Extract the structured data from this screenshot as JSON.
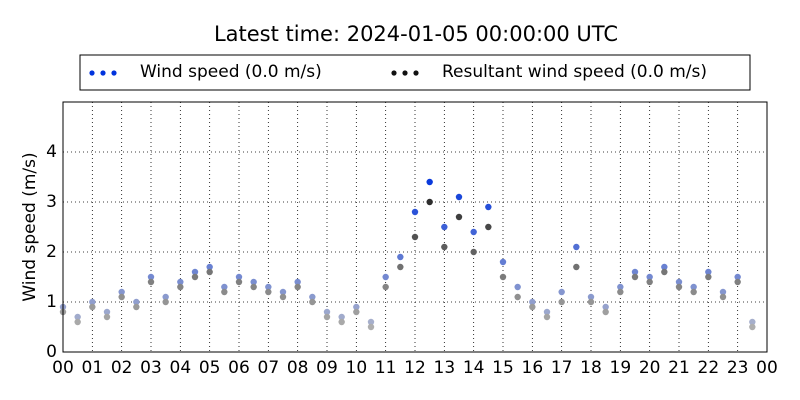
{
  "chart_data": {
    "type": "scatter",
    "title": "Latest time: 2024-01-05 00:00:00 UTC",
    "y_label": "Wind speed (m/s)",
    "x": [
      0,
      0.5,
      1,
      1.5,
      2,
      2.5,
      3,
      3.5,
      4,
      4.5,
      5,
      5.5,
      6,
      6.5,
      7,
      7.5,
      8,
      8.5,
      9,
      9.5,
      10,
      10.5,
      11,
      11.5,
      12,
      12.5,
      13,
      13.5,
      14,
      14.5,
      15,
      15.5,
      16,
      16.5,
      17,
      17.5,
      18,
      18.5,
      19,
      19.5,
      20,
      20.5,
      21,
      21.5,
      22,
      22.5,
      23,
      23.5
    ],
    "series": [
      {
        "name": "Wind speed (0.0 m/s)",
        "color": "#0033dd",
        "values": [
          0.9,
          0.7,
          1.0,
          0.8,
          1.2,
          1.0,
          1.5,
          1.1,
          1.4,
          1.6,
          1.7,
          1.3,
          1.5,
          1.4,
          1.3,
          1.2,
          1.4,
          1.1,
          0.8,
          0.7,
          0.9,
          0.6,
          1.5,
          1.9,
          2.8,
          3.4,
          2.5,
          3.1,
          2.4,
          2.9,
          1.8,
          1.3,
          1.0,
          0.8,
          1.2,
          2.1,
          1.1,
          0.9,
          1.3,
          1.6,
          1.5,
          1.7,
          1.4,
          1.3,
          1.6,
          1.2,
          1.5,
          0.6
        ]
      },
      {
        "name": "Resultant wind speed (0.0 m/s)",
        "color": "#111111",
        "values": [
          0.8,
          0.6,
          0.9,
          0.7,
          1.1,
          0.9,
          1.4,
          1.0,
          1.3,
          1.5,
          1.6,
          1.2,
          1.4,
          1.3,
          1.2,
          1.1,
          1.3,
          1.0,
          0.7,
          0.6,
          0.8,
          0.5,
          1.3,
          1.7,
          2.3,
          3.0,
          2.1,
          2.7,
          2.0,
          2.5,
          1.5,
          1.1,
          0.9,
          0.7,
          1.0,
          1.7,
          1.0,
          0.8,
          1.2,
          1.5,
          1.4,
          1.6,
          1.3,
          1.2,
          1.5,
          1.1,
          1.4,
          0.5
        ]
      }
    ],
    "xlim": [
      0,
      24
    ],
    "xticks": [
      {
        "value": 0,
        "label": "00"
      },
      {
        "value": 1,
        "label": "01"
      },
      {
        "value": 2,
        "label": "02"
      },
      {
        "value": 3,
        "label": "03"
      },
      {
        "value": 4,
        "label": "04"
      },
      {
        "value": 5,
        "label": "05"
      },
      {
        "value": 6,
        "label": "06"
      },
      {
        "value": 7,
        "label": "07"
      },
      {
        "value": 8,
        "label": "08"
      },
      {
        "value": 9,
        "label": "09"
      },
      {
        "value": 10,
        "label": "10"
      },
      {
        "value": 11,
        "label": "11"
      },
      {
        "value": 12,
        "label": "12"
      },
      {
        "value": 13,
        "label": "13"
      },
      {
        "value": 14,
        "label": "14"
      },
      {
        "value": 15,
        "label": "15"
      },
      {
        "value": 16,
        "label": "16"
      },
      {
        "value": 17,
        "label": "17"
      },
      {
        "value": 18,
        "label": "18"
      },
      {
        "value": 19,
        "label": "19"
      },
      {
        "value": 20,
        "label": "20"
      },
      {
        "value": 21,
        "label": "21"
      },
      {
        "value": 22,
        "label": "22"
      },
      {
        "value": 23,
        "label": "23"
      },
      {
        "value": 24,
        "label": "00"
      }
    ],
    "ylim": [
      0,
      5
    ],
    "yticks": [
      0,
      1,
      2,
      3,
      4
    ],
    "grid": true
  }
}
